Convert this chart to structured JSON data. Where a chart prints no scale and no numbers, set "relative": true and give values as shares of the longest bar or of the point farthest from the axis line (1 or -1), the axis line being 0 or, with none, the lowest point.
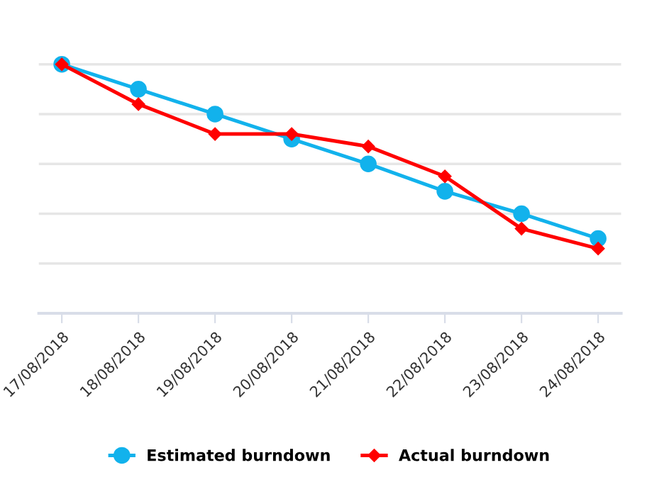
{
  "chart_data": {
    "type": "line",
    "relative": true,
    "categories": [
      "17/08/2018",
      "18/08/2018",
      "19/08/2018",
      "20/08/2018",
      "21/08/2018",
      "22/08/2018",
      "23/08/2018",
      "24/08/2018"
    ],
    "series": [
      {
        "name": "Estimated burndown",
        "color": "#12b2ec",
        "marker": "circle",
        "values": [
          1,
          0.9,
          0.8,
          0.7,
          0.6,
          0.49,
          0.4,
          0.3
        ]
      },
      {
        "name": "Actual burndown",
        "color": "#ff0000",
        "marker": "diamond",
        "values": [
          1,
          0.84,
          0.72,
          0.72,
          0.67,
          0.55,
          0.34,
          0.26
        ]
      }
    ],
    "grid": "y",
    "legend": "bottom",
    "line_style": "solid"
  }
}
